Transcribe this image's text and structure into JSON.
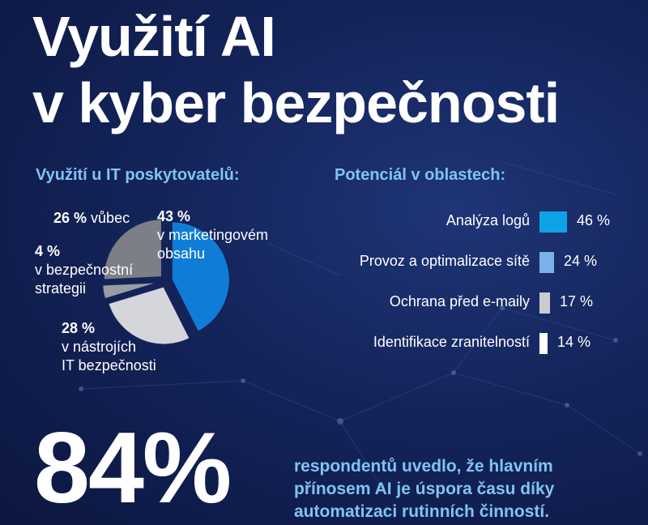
{
  "title": {
    "line1": "Využití AI",
    "line2": "v kyber bezpečnosti"
  },
  "colors": {
    "accent": "#7fc4f2",
    "blue": "#0f7dd6",
    "light_blue": "#78b2e8",
    "white": "#ffffff",
    "gray_light": "#d4d6dc",
    "gray_dark": "#7d7f86"
  },
  "chart_data": [
    {
      "type": "pie",
      "title": "Využití u IT poskytovatelů:",
      "slices": [
        {
          "value": 43,
          "pct_label": "43 %",
          "label_lines": [
            "v marketingovém",
            "obsahu"
          ],
          "color": "#0f7dd6"
        },
        {
          "value": 28,
          "pct_label": "28 %",
          "label_lines": [
            "v nástrojích",
            "IT bezpečnosti"
          ],
          "color": "#d4d6dc"
        },
        {
          "value": 4,
          "pct_label": "4 %",
          "label_lines": [
            "v bezpečnostní",
            "strategii"
          ],
          "color": "#9a9ca3"
        },
        {
          "value": 26,
          "pct_label": "26 %",
          "label_lines": [
            "vůbec"
          ],
          "color": "#7d7f86"
        }
      ]
    },
    {
      "type": "bar",
      "orientation": "horizontal",
      "title": "Potenciál v oblastech:",
      "categories": [
        "Analýza logů",
        "Provoz a optimalizace sítě",
        "Ochrana před e-maily",
        "Identifikace zranitelností"
      ],
      "values": [
        46,
        24,
        17,
        14
      ],
      "value_labels": [
        "46 %",
        "24 %",
        "17 %",
        "14 %"
      ],
      "colors": [
        "#0fa3e6",
        "#78b2e8",
        "#c9cbd2",
        "#ffffff"
      ]
    }
  ],
  "highlight": {
    "number": "84%",
    "text": "respondentů uvedlo, že hlavním přínosem AI je úspora času díky automatizaci rutinních činností."
  }
}
